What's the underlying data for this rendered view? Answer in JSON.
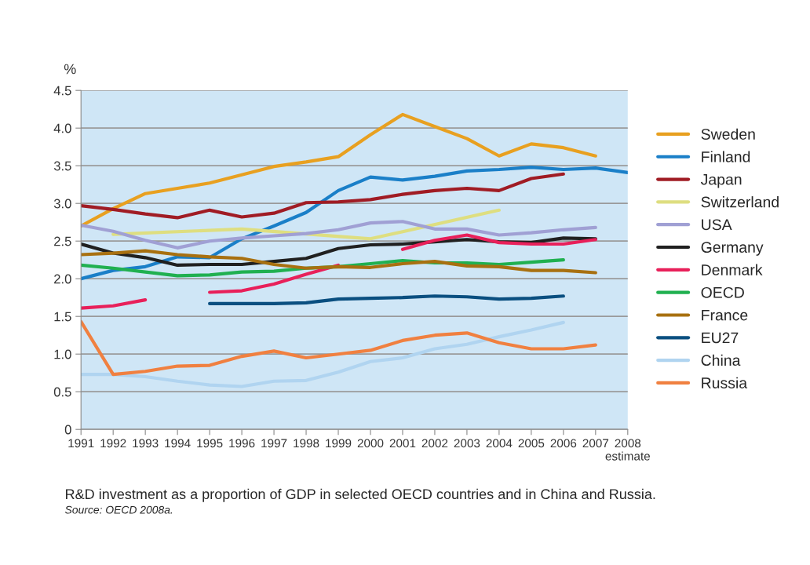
{
  "chart_data": {
    "type": "line",
    "ylabel": "%",
    "x": [
      1991,
      1992,
      1993,
      1994,
      1995,
      1996,
      1997,
      1998,
      1999,
      2000,
      2001,
      2002,
      2003,
      2004,
      2005,
      2006,
      2007,
      2008
    ],
    "xlim": [
      1991,
      2008
    ],
    "xticks": [
      1991,
      1992,
      1993,
      1994,
      1995,
      1996,
      1997,
      1998,
      1999,
      2000,
      2001,
      2002,
      2003,
      2004,
      2005,
      2006,
      2007,
      {
        "value": 2008,
        "label": "2008\nestimate"
      }
    ],
    "ylim": [
      0,
      4.5
    ],
    "yticks": [
      {
        "value": 0,
        "label": "0"
      },
      {
        "value": 0.5,
        "label": "0.5"
      },
      {
        "value": 1,
        "label": "1.0"
      },
      {
        "value": 1.5,
        "label": "1.5"
      },
      {
        "value": 2,
        "label": "2.0"
      },
      {
        "value": 2.5,
        "label": "2.5"
      },
      {
        "value": 3,
        "label": "3.0"
      },
      {
        "value": 3.5,
        "label": "3.5"
      },
      {
        "value": 4,
        "label": "4.0"
      },
      {
        "value": 4.5,
        "label": "4.5"
      }
    ],
    "grid": "y",
    "legend": "right",
    "marker": "none",
    "line_style": "solid",
    "series": [
      {
        "name": "Sweden",
        "color": "#e8a020",
        "values": [
          2.7,
          2.93,
          3.13,
          3.2,
          3.27,
          3.38,
          3.49,
          3.55,
          3.62,
          3.91,
          4.18,
          4.02,
          3.86,
          3.63,
          3.79,
          3.74,
          3.63,
          null
        ]
      },
      {
        "name": "Finland",
        "color": "#1a7fc8",
        "values": [
          2.0,
          2.11,
          2.16,
          2.29,
          2.28,
          2.53,
          2.7,
          2.88,
          3.17,
          3.35,
          3.31,
          3.36,
          3.43,
          3.45,
          3.48,
          3.45,
          3.47,
          3.41
        ]
      },
      {
        "name": "Japan",
        "color": "#a01c24",
        "values": [
          2.97,
          2.92,
          2.86,
          2.81,
          2.91,
          2.82,
          2.87,
          3.01,
          3.02,
          3.05,
          3.12,
          3.17,
          3.2,
          3.17,
          3.33,
          3.39,
          null,
          null
        ]
      },
      {
        "name": "Switzerland",
        "color": "#dede80",
        "x": [
          1992,
          1996,
          2000,
          2004
        ],
        "values": [
          2.59,
          2.66,
          2.53,
          2.91
        ]
      },
      {
        "name": "USA",
        "color": "#a0a0d4",
        "values": [
          2.71,
          2.63,
          2.51,
          2.41,
          2.5,
          2.54,
          2.57,
          2.6,
          2.65,
          2.74,
          2.76,
          2.66,
          2.66,
          2.58,
          2.61,
          2.65,
          2.68,
          null
        ]
      },
      {
        "name": "Germany",
        "color": "#202020",
        "values": [
          2.46,
          2.34,
          2.28,
          2.18,
          2.19,
          2.19,
          2.23,
          2.27,
          2.4,
          2.45,
          2.46,
          2.49,
          2.52,
          2.49,
          2.48,
          2.54,
          2.53,
          null
        ]
      },
      {
        "name": "Denmark",
        "color": "#e8205a",
        "values": [
          1.61,
          1.64,
          1.72,
          null,
          1.82,
          1.84,
          1.93,
          2.06,
          2.18,
          null,
          2.39,
          2.51,
          2.58,
          2.48,
          2.46,
          2.46,
          2.52,
          null
        ]
      },
      {
        "name": "OECD",
        "color": "#20b050",
        "values": [
          2.18,
          2.14,
          2.09,
          2.04,
          2.05,
          2.09,
          2.1,
          2.14,
          2.16,
          2.2,
          2.24,
          2.21,
          2.21,
          2.19,
          2.22,
          2.25,
          null,
          null
        ]
      },
      {
        "name": "France",
        "color": "#a87010",
        "values": [
          2.32,
          2.34,
          2.37,
          2.32,
          2.29,
          2.27,
          2.19,
          2.14,
          2.16,
          2.15,
          2.2,
          2.23,
          2.17,
          2.16,
          2.11,
          2.11,
          2.08,
          null
        ]
      },
      {
        "name": "EU27",
        "color": "#0a4f80",
        "values": [
          null,
          null,
          null,
          null,
          1.67,
          1.67,
          1.67,
          1.68,
          1.73,
          1.74,
          1.75,
          1.77,
          1.76,
          1.73,
          1.74,
          1.77,
          null,
          null
        ]
      },
      {
        "name": "China",
        "color": "#b0d4f0",
        "values": [
          0.73,
          0.73,
          0.7,
          0.64,
          0.59,
          0.57,
          0.64,
          0.65,
          0.76,
          0.9,
          0.95,
          1.07,
          1.13,
          1.23,
          1.32,
          1.42,
          null,
          null
        ]
      },
      {
        "name": "Russia",
        "color": "#f08040",
        "values": [
          1.43,
          0.73,
          0.77,
          0.84,
          0.85,
          0.97,
          1.04,
          0.95,
          1.0,
          1.05,
          1.18,
          1.25,
          1.28,
          1.15,
          1.07,
          1.07,
          1.12,
          null
        ]
      }
    ],
    "annotations": [
      "R&D investment as a proportion of GDP in selected OECD countries and in China and Russia.",
      "Source: OECD 2008a."
    ]
  }
}
